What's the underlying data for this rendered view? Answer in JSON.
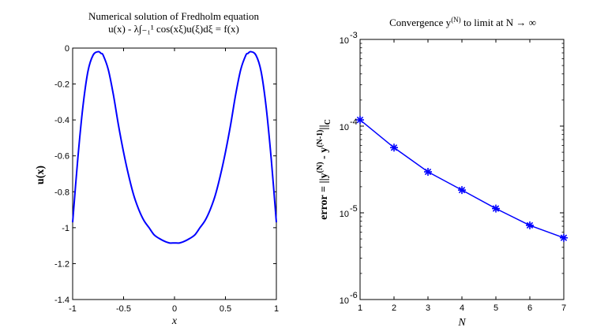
{
  "chart_data": [
    {
      "type": "line",
      "title": "Numerical solution of Fredholm equation",
      "subtitle": "u(x) - λ∫₋₁¹ cos(xξ)u(ξ)dξ = f(x)",
      "xlabel": "x",
      "ylabel": "u(x)",
      "xlim": [
        -1,
        1
      ],
      "ylim": [
        -1.4,
        0
      ],
      "xticks": [
        "-1",
        "-0.5",
        "0",
        "0.5",
        "1"
      ],
      "yticks": [
        "0",
        "-0.2",
        "-0.4",
        "-0.6",
        "-0.8",
        "-1",
        "-1.2",
        "-1.4"
      ],
      "grid": false,
      "color": "#0000ff",
      "x": [
        -1,
        -0.95,
        -0.9,
        -0.85,
        -0.8,
        -0.75,
        -0.72,
        -0.7,
        -0.65,
        -0.6,
        -0.55,
        -0.5,
        -0.45,
        -0.4,
        -0.35,
        -0.3,
        -0.25,
        -0.2,
        -0.15,
        -0.1,
        -0.05,
        0,
        0.05,
        0.1,
        0.15,
        0.2,
        0.25,
        0.3,
        0.35,
        0.4,
        0.45,
        0.5,
        0.55,
        0.6,
        0.65,
        0.7,
        0.72,
        0.75,
        0.8,
        0.85,
        0.9,
        0.95,
        1
      ],
      "y": [
        -0.97,
        -0.62,
        -0.33,
        -0.13,
        -0.04,
        -0.02,
        -0.03,
        -0.04,
        -0.12,
        -0.26,
        -0.43,
        -0.58,
        -0.71,
        -0.82,
        -0.9,
        -0.96,
        -1.0,
        -1.04,
        -1.06,
        -1.075,
        -1.085,
        -1.085,
        -1.085,
        -1.075,
        -1.06,
        -1.04,
        -1.0,
        -0.96,
        -0.9,
        -0.82,
        -0.71,
        -0.58,
        -0.43,
        -0.26,
        -0.12,
        -0.04,
        -0.03,
        -0.02,
        -0.04,
        -0.13,
        -0.33,
        -0.62,
        -0.97
      ]
    },
    {
      "type": "line",
      "title": "Convergence y(N) to limit at N → ∞",
      "xlabel": "N",
      "ylabel": "error = ||y(N) - y(N-1)||C",
      "xlim": [
        1,
        7
      ],
      "ylim": [
        1e-06,
        0.001
      ],
      "yscale": "log",
      "xticks": [
        "1",
        "2",
        "3",
        "4",
        "5",
        "6",
        "7"
      ],
      "yticks": [
        {
          "base": "10",
          "exp": "-3",
          "value": 0.001
        },
        {
          "base": "10",
          "exp": "-4",
          "value": 0.0001
        },
        {
          "base": "10",
          "exp": "-5",
          "value": 1e-05
        },
        {
          "base": "10",
          "exp": "-6",
          "value": 1e-06
        }
      ],
      "grid": false,
      "marker": "asterisk",
      "color": "#0000ff",
      "x": [
        1,
        2,
        3,
        4,
        5,
        6,
        7
      ],
      "y": [
        0.000118,
        5.65e-05,
        2.97e-05,
        1.83e-05,
        1.12e-05,
        7.17e-06,
        5.15e-06
      ]
    }
  ]
}
